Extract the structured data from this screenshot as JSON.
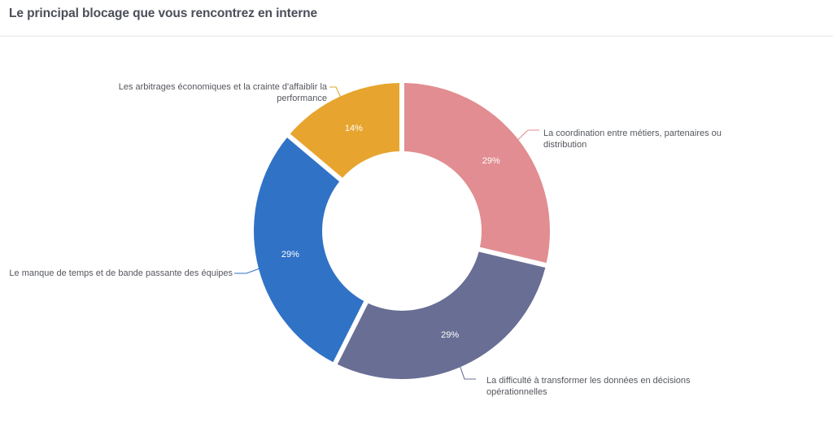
{
  "title": "Le principal blocage que vous rencontrez en interne",
  "colors": {
    "background": "#FFFFFF",
    "title_text": "#4A4E58",
    "label_text": "#54575D",
    "divider": "#E7E7E9",
    "percent_text": "#FFFFFF"
  },
  "chart_data": {
    "type": "pie",
    "subtype": "donut",
    "title": "Le principal blocage que vous rencontrez en interne",
    "unit": "%",
    "direction": "clockwise",
    "start_angle_deg": 0,
    "inner_radius_ratio": 0.54,
    "legend": "none",
    "slices": [
      {
        "name": "coordination",
        "label": "La coordination entre métiers, partenaires ou distribution",
        "label_lines": [
          "La coordination entre métiers, partenaires ou",
          "distribution"
        ],
        "value_pct": 29,
        "percent_label": "29%",
        "color": "#E18D91"
      },
      {
        "name": "donnees-decisions",
        "label": "La difficulté à transformer les données en décisions opérationnelles",
        "label_lines": [
          "La difficulté à transformer les données en décisions",
          "opérationnelles"
        ],
        "value_pct": 29,
        "percent_label": "29%",
        "color": "#686E94"
      },
      {
        "name": "manque-temps",
        "label": "Le manque de temps et de bande passante des équipes",
        "label_lines": [
          "Le manque de temps et de bande passante des équipes"
        ],
        "value_pct": 29,
        "percent_label": "29%",
        "color": "#3072C6"
      },
      {
        "name": "arbitrages-economiques",
        "label": "Les arbitrages économiques et la crainte d'affaiblir la performance",
        "label_lines": [
          "Les arbitrages économiques et la crainte d'affaiblir la",
          "performance"
        ],
        "value_pct": 14,
        "percent_label": "14%",
        "color": "#E7A52F"
      }
    ]
  }
}
